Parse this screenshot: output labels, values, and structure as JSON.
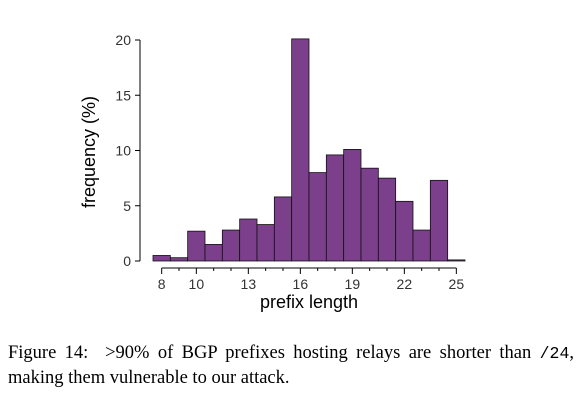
{
  "chart_data": {
    "type": "bar",
    "histogram": true,
    "xlabel": "prefix length",
    "ylabel": "frequency (%)",
    "xlim": [
      7.5,
      25.5
    ],
    "ylim": [
      0,
      20
    ],
    "x_ticks": [
      8,
      10,
      13,
      16,
      19,
      22,
      25
    ],
    "y_ticks": [
      0,
      5,
      10,
      15,
      20
    ],
    "bar_color": "#7b3f8c",
    "bin_width": 1,
    "categories": [
      8,
      9,
      10,
      11,
      12,
      13,
      14,
      15,
      16,
      17,
      18,
      19,
      20,
      21,
      22,
      23,
      24,
      25
    ],
    "values": [
      0.5,
      0.3,
      2.7,
      1.5,
      2.8,
      3.8,
      3.3,
      5.8,
      20.1,
      8.0,
      9.6,
      10.1,
      8.4,
      7.5,
      5.4,
      2.8,
      7.3,
      0.1
    ]
  },
  "caption": {
    "label": "Figure 14:",
    "gt": ">",
    "percent": "90%",
    "text_1": " of BGP prefixes hosting relays are shorter than ",
    "code": "/24",
    "text_2": ", making them vulnerable to our attack."
  }
}
